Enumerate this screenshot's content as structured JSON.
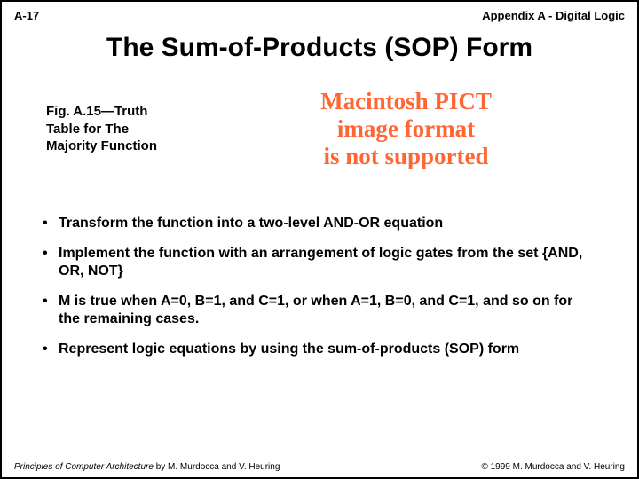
{
  "header": {
    "page_number": "A-17",
    "section": "Appendix A - Digital Logic"
  },
  "title": "The Sum-of-Products (SOP) Form",
  "figure": {
    "caption_line1": "Fig. A.15—Truth",
    "caption_line2": "Table for The",
    "caption_line3": "Majority Function",
    "error_line1": "Macintosh PICT",
    "error_line2": "image format",
    "error_line3": "is not supported",
    "error_color": "#ff6633"
  },
  "bullets": [
    "Transform the function into a two-level AND-OR equation",
    "Implement the function with an arrangement of logic gates from the set {AND, OR, NOT}",
    "M is true when A=0, B=1, and C=1, or when A=1, B=0, and C=1, and so on for the remaining cases.",
    "Represent logic equations by using the sum-of-products (SOP) form"
  ],
  "footer": {
    "book_title": "Principles of Computer Architecture",
    "authors_suffix": " by M. Murdocca and V. Heuring",
    "copyright": "© 1999 M. Murdocca and V. Heuring"
  }
}
